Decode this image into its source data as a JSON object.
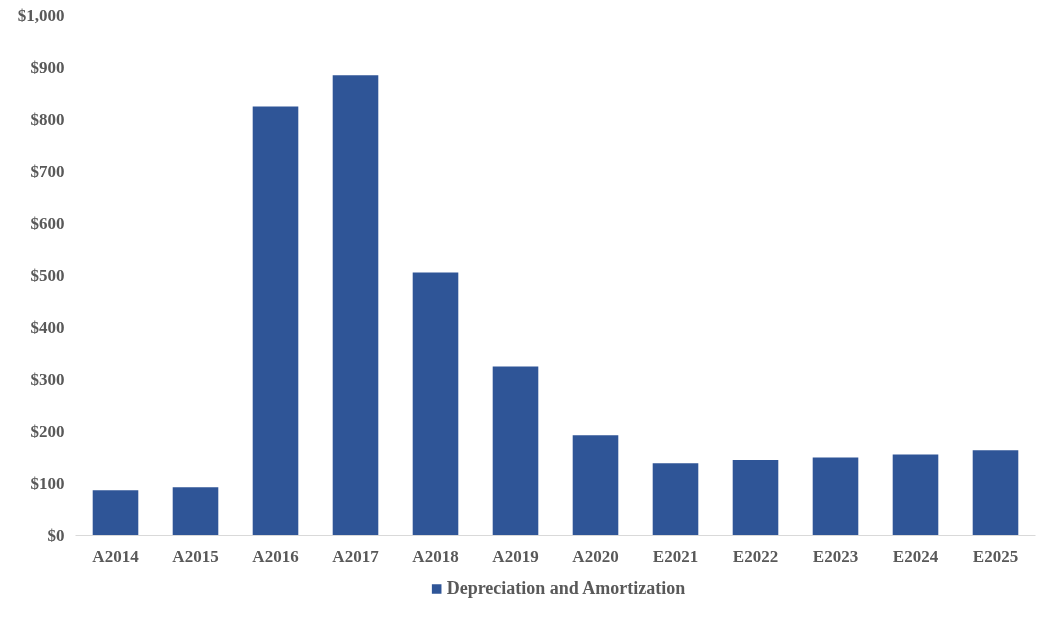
{
  "chart_data": {
    "type": "bar",
    "categories": [
      "A2014",
      "A2015",
      "A2016",
      "A2017",
      "A2018",
      "A2019",
      "A2020",
      "E2021",
      "E2022",
      "E2023",
      "E2024",
      "E2025"
    ],
    "series": [
      {
        "name": "Depreciation and Amortization",
        "color": "#2f5597",
        "values": [
          87,
          93,
          825,
          885,
          506,
          325,
          193,
          139,
          145,
          150,
          156,
          164
        ]
      }
    ],
    "ylim": [
      0,
      1000
    ],
    "yticks": [
      {
        "value": 0,
        "label": "$0"
      },
      {
        "value": 100,
        "label": "$100"
      },
      {
        "value": 200,
        "label": "$200"
      },
      {
        "value": 300,
        "label": "$300"
      },
      {
        "value": 400,
        "label": "$400"
      },
      {
        "value": 500,
        "label": "$500"
      },
      {
        "value": 600,
        "label": "$600"
      },
      {
        "value": 700,
        "label": "$700"
      },
      {
        "value": 800,
        "label": "$800"
      },
      {
        "value": 900,
        "label": "$900"
      },
      {
        "value": 1000,
        "label": "$1,000"
      }
    ],
    "grid": false,
    "legend": "bottom"
  }
}
